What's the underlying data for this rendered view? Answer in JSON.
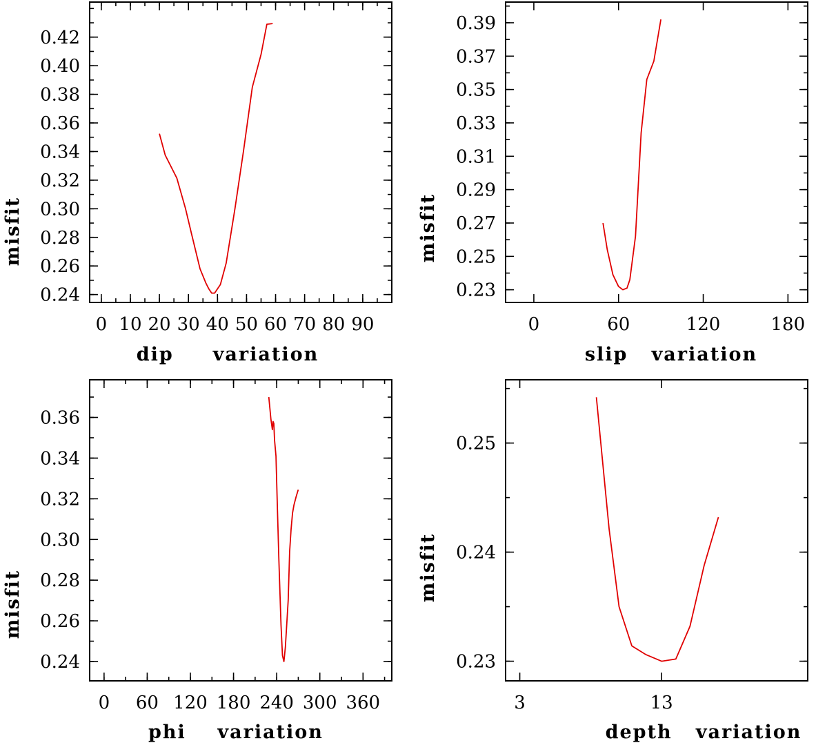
{
  "chart_data": [
    {
      "type": "line",
      "title": "",
      "xlabel": "dip     variation",
      "ylabel": "misfit",
      "xlim": [
        -4,
        100
      ],
      "ylim": [
        0.2345,
        0.4445
      ],
      "xticks": [
        0,
        10,
        20,
        30,
        40,
        50,
        60,
        70,
        80,
        90
      ],
      "xtick_labels": [
        "0",
        "10",
        "20",
        "30",
        "40",
        "50",
        "60",
        "70",
        "80",
        "90"
      ],
      "xminor": 5,
      "yticks": [
        0.24,
        0.26,
        0.28,
        0.3,
        0.32,
        0.34,
        0.36,
        0.38,
        0.4,
        0.42
      ],
      "ytick_labels": [
        "0.24",
        "0.26",
        "0.28",
        "0.30",
        "0.32",
        "0.34",
        "0.36",
        "0.38",
        "0.40",
        "0.42"
      ],
      "yminor": 0.01,
      "series": [
        {
          "name": "dip",
          "color": "#e00000",
          "x": [
            20,
            22,
            26,
            29,
            31,
            34,
            36,
            37,
            38,
            39,
            41,
            43,
            46,
            49,
            52,
            55,
            57,
            59
          ],
          "y": [
            0.3525,
            0.3375,
            0.3215,
            0.3,
            0.283,
            0.258,
            0.248,
            0.244,
            0.241,
            0.241,
            0.247,
            0.262,
            0.3,
            0.341,
            0.385,
            0.408,
            0.429,
            0.4295
          ]
        }
      ]
    },
    {
      "type": "line",
      "title": "",
      "xlabel": "slip   variation",
      "ylabel": "misfit",
      "xlim": [
        -20,
        194
      ],
      "ylim": [
        0.2224,
        0.4024
      ],
      "xticks": [
        0,
        60,
        120,
        180
      ],
      "xtick_labels": [
        "0",
        "60",
        "120",
        "180"
      ],
      "xminor": null,
      "yticks": [
        0.23,
        0.25,
        0.27,
        0.29,
        0.31,
        0.33,
        0.35,
        0.37,
        0.39
      ],
      "ytick_labels": [
        "0.23",
        "0.25",
        "0.27",
        "0.29",
        "0.31",
        "0.33",
        "0.35",
        "0.37",
        "0.39"
      ],
      "yminor": 0.01,
      "series": [
        {
          "name": "slip",
          "color": "#e00000",
          "x": [
            49,
            52,
            56,
            60,
            63,
            66,
            68,
            72,
            76,
            80,
            85,
            90
          ],
          "y": [
            0.27,
            0.254,
            0.239,
            0.232,
            0.23,
            0.231,
            0.236,
            0.262,
            0.324,
            0.356,
            0.367,
            0.392
          ]
        }
      ]
    },
    {
      "type": "line",
      "title": "",
      "xlabel": "phi    variation",
      "ylabel": "misfit",
      "xlim": [
        -20,
        400
      ],
      "ylim": [
        0.2305,
        0.3785
      ],
      "xticks": [
        0,
        60,
        120,
        180,
        240,
        300,
        360
      ],
      "xtick_labels": [
        "0",
        "60",
        "120",
        "180",
        "240",
        "300",
        "360"
      ],
      "xminor": 30,
      "yticks": [
        0.24,
        0.26,
        0.28,
        0.3,
        0.32,
        0.34,
        0.36
      ],
      "ytick_labels": [
        "0.24",
        "0.26",
        "0.28",
        "0.30",
        "0.32",
        "0.34",
        "0.36"
      ],
      "yminor": 0.01,
      "series": [
        {
          "name": "phi",
          "color": "#e00000",
          "x": [
            229,
            232,
            234,
            235,
            236,
            237,
            239,
            241,
            243,
            246,
            248,
            250,
            252,
            256,
            258,
            260,
            262,
            264,
            267,
            270
          ],
          "y": [
            0.37,
            0.359,
            0.354,
            0.358,
            0.357,
            0.349,
            0.341,
            0.315,
            0.29,
            0.258,
            0.243,
            0.24,
            0.247,
            0.27,
            0.294,
            0.305,
            0.313,
            0.317,
            0.321,
            0.3245
          ]
        }
      ]
    },
    {
      "type": "line",
      "title": "",
      "xlabel": "depth   variation",
      "ylabel": "misfit",
      "xlim": [
        2,
        23.3
      ],
      "ylim": [
        0.2282,
        0.2558
      ],
      "xticks": [
        3,
        13
      ],
      "xtick_labels": [
        "3",
        "13"
      ],
      "xminor": null,
      "yticks": [
        0.23,
        0.24,
        0.25
      ],
      "ytick_labels": [
        "0.23",
        "0.24",
        "0.25"
      ],
      "yminor": 0.005,
      "series": [
        {
          "name": "depth",
          "color": "#e00000",
          "x": [
            8.4,
            9.3,
            10.0,
            10.9,
            11.9,
            13.0,
            14.0,
            15.0,
            16.0,
            17.0
          ],
          "y": [
            0.2542,
            0.2421,
            0.235,
            0.2314,
            0.2306,
            0.23,
            0.2302,
            0.2332,
            0.2388,
            0.2432
          ]
        }
      ]
    }
  ]
}
